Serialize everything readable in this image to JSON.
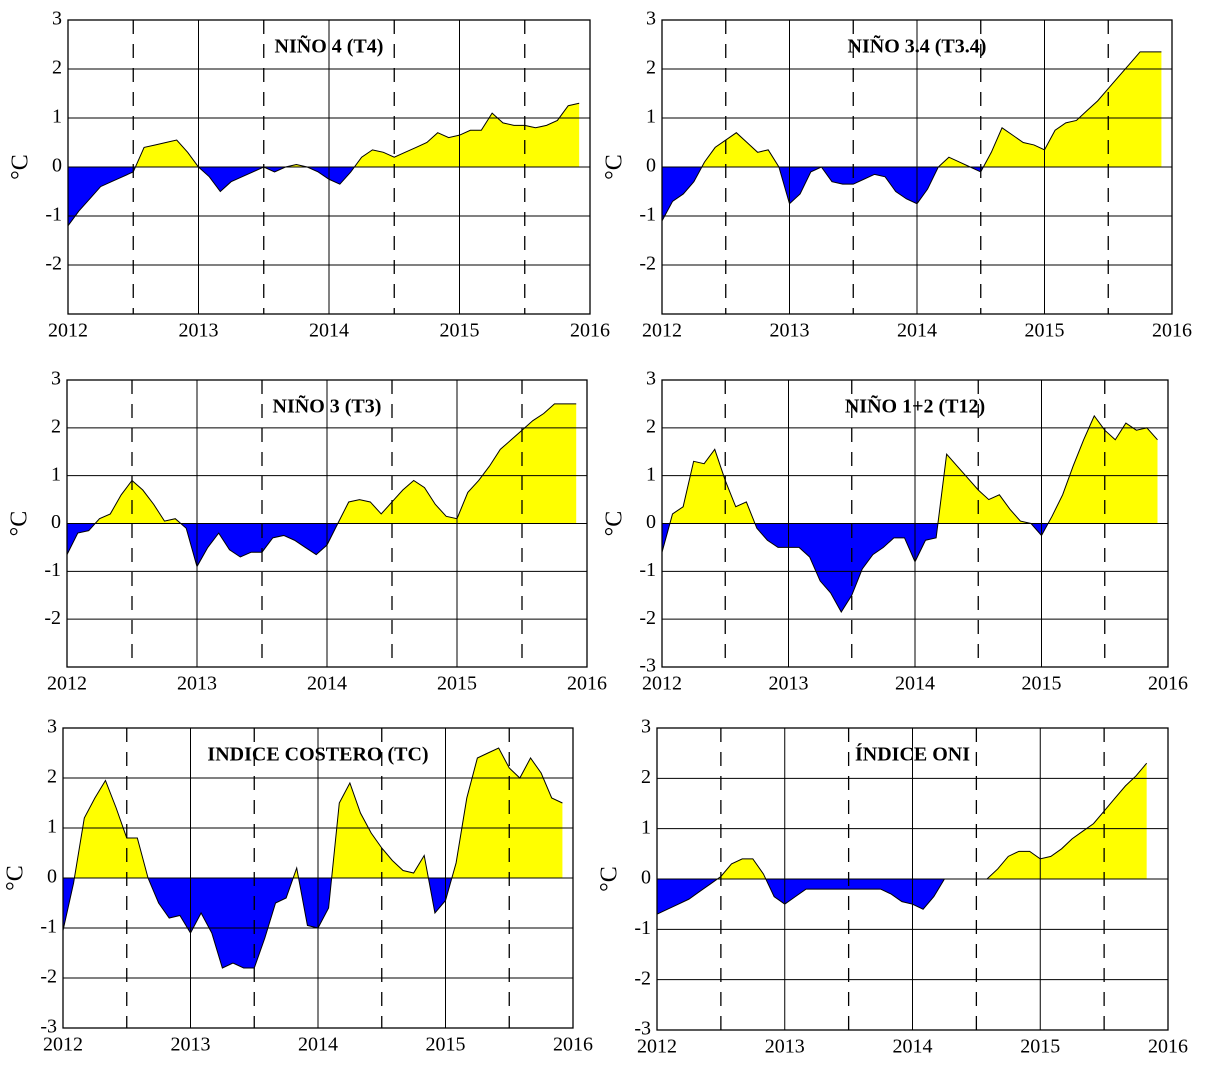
{
  "chart_data": [
    {
      "type": "area",
      "title": "NIÑO 4 (T4)",
      "ylabel": "°C",
      "pos_color": "#ffff00",
      "neg_color": "#0000ff",
      "line_color": "#000000",
      "x": [
        2012,
        2012.083,
        2012.167,
        2012.25,
        2012.333,
        2012.417,
        2012.5,
        2012.583,
        2012.667,
        2012.75,
        2012.833,
        2012.917,
        2013,
        2013.083,
        2013.167,
        2013.25,
        2013.333,
        2013.417,
        2013.5,
        2013.583,
        2013.667,
        2013.75,
        2013.833,
        2013.917,
        2014,
        2014.083,
        2014.167,
        2014.25,
        2014.333,
        2014.417,
        2014.5,
        2014.583,
        2014.667,
        2014.75,
        2014.833,
        2014.917,
        2015,
        2015.083,
        2015.167,
        2015.25,
        2015.333,
        2015.417,
        2015.5,
        2015.583,
        2015.667,
        2015.75,
        2015.833,
        2015.917
      ],
      "values": [
        -1.2,
        -0.9,
        -0.65,
        -0.4,
        -0.3,
        -0.2,
        -0.1,
        0.4,
        0.45,
        0.5,
        0.55,
        0.3,
        0.0,
        -0.2,
        -0.5,
        -0.3,
        -0.2,
        -0.1,
        0.0,
        -0.1,
        0.0,
        0.05,
        0.0,
        -0.1,
        -0.25,
        -0.35,
        -0.1,
        0.2,
        0.35,
        0.3,
        0.2,
        0.3,
        0.4,
        0.5,
        0.7,
        0.6,
        0.65,
        0.75,
        0.75,
        1.1,
        0.9,
        0.85,
        0.85,
        0.8,
        0.85,
        0.95,
        1.25,
        1.3
      ],
      "xlim": [
        2012,
        2016
      ],
      "xticks": [
        2012,
        2013,
        2014,
        2015,
        2016
      ],
      "x_dashed": [
        2012.5,
        2013.5,
        2014.5,
        2015.5
      ],
      "ylim": [
        -3,
        3
      ],
      "yticks": [
        -2,
        -1,
        0,
        1,
        2,
        3
      ],
      "grid": true
    },
    {
      "type": "area",
      "title": "NIÑO 3.4 (T3.4)",
      "ylabel": "°C",
      "pos_color": "#ffff00",
      "neg_color": "#0000ff",
      "line_color": "#000000",
      "x": [
        2012,
        2012.083,
        2012.167,
        2012.25,
        2012.333,
        2012.417,
        2012.5,
        2012.583,
        2012.667,
        2012.75,
        2012.833,
        2012.917,
        2013,
        2013.083,
        2013.167,
        2013.25,
        2013.333,
        2013.417,
        2013.5,
        2013.583,
        2013.667,
        2013.75,
        2013.833,
        2013.917,
        2014,
        2014.083,
        2014.167,
        2014.25,
        2014.333,
        2014.417,
        2014.5,
        2014.583,
        2014.667,
        2014.75,
        2014.833,
        2014.917,
        2015,
        2015.083,
        2015.167,
        2015.25,
        2015.333,
        2015.417,
        2015.5,
        2015.583,
        2015.667,
        2015.75,
        2015.833,
        2015.917
      ],
      "values": [
        -1.1,
        -0.7,
        -0.55,
        -0.3,
        0.1,
        0.4,
        0.55,
        0.7,
        0.5,
        0.3,
        0.35,
        0.0,
        -0.75,
        -0.55,
        -0.1,
        0.0,
        -0.3,
        -0.35,
        -0.35,
        -0.25,
        -0.15,
        -0.2,
        -0.5,
        -0.65,
        -0.75,
        -0.45,
        0.0,
        0.2,
        0.1,
        0.0,
        -0.1,
        0.3,
        0.8,
        0.65,
        0.5,
        0.45,
        0.35,
        0.75,
        0.9,
        0.95,
        1.15,
        1.35,
        1.6,
        1.85,
        2.1,
        2.35,
        2.35,
        2.35
      ],
      "xlim": [
        2012,
        2016
      ],
      "xticks": [
        2012,
        2013,
        2014,
        2015,
        2016
      ],
      "x_dashed": [
        2012.5,
        2013.5,
        2014.5,
        2015.5
      ],
      "ylim": [
        -3,
        3
      ],
      "yticks": [
        -2,
        -1,
        0,
        1,
        2,
        3
      ],
      "grid": true
    },
    {
      "type": "area",
      "title": "NIÑO 3 (T3)",
      "ylabel": "°C",
      "pos_color": "#ffff00",
      "neg_color": "#0000ff",
      "line_color": "#000000",
      "x": [
        2012,
        2012.083,
        2012.167,
        2012.25,
        2012.333,
        2012.417,
        2012.5,
        2012.583,
        2012.667,
        2012.75,
        2012.833,
        2012.917,
        2013,
        2013.083,
        2013.167,
        2013.25,
        2013.333,
        2013.417,
        2013.5,
        2013.583,
        2013.667,
        2013.75,
        2013.833,
        2013.917,
        2014,
        2014.083,
        2014.167,
        2014.25,
        2014.333,
        2014.417,
        2014.5,
        2014.583,
        2014.667,
        2014.75,
        2014.833,
        2014.917,
        2015,
        2015.083,
        2015.167,
        2015.25,
        2015.333,
        2015.417,
        2015.5,
        2015.583,
        2015.667,
        2015.75,
        2015.833,
        2015.917
      ],
      "values": [
        -0.65,
        -0.2,
        -0.15,
        0.1,
        0.2,
        0.6,
        0.9,
        0.7,
        0.4,
        0.05,
        0.1,
        -0.1,
        -0.9,
        -0.5,
        -0.2,
        -0.55,
        -0.7,
        -0.6,
        -0.6,
        -0.3,
        -0.25,
        -0.35,
        -0.5,
        -0.65,
        -0.45,
        0.0,
        0.45,
        0.5,
        0.45,
        0.2,
        0.45,
        0.7,
        0.9,
        0.75,
        0.4,
        0.15,
        0.1,
        0.65,
        0.9,
        1.2,
        1.55,
        1.75,
        1.95,
        2.15,
        2.3,
        2.5,
        2.5,
        2.5
      ],
      "xlim": [
        2012,
        2016
      ],
      "xticks": [
        2012,
        2013,
        2014,
        2015,
        2016
      ],
      "x_dashed": [
        2012.5,
        2013.5,
        2014.5,
        2015.5
      ],
      "ylim": [
        -3,
        3
      ],
      "yticks": [
        -2,
        -1,
        0,
        1,
        2,
        3
      ],
      "grid": true
    },
    {
      "type": "area",
      "title": "NIÑO 1+2 (T12)",
      "ylabel": "°C",
      "pos_color": "#ffff00",
      "neg_color": "#0000ff",
      "line_color": "#000000",
      "x": [
        2012,
        2012.083,
        2012.167,
        2012.25,
        2012.333,
        2012.417,
        2012.5,
        2012.583,
        2012.667,
        2012.75,
        2012.833,
        2012.917,
        2013,
        2013.083,
        2013.167,
        2013.25,
        2013.333,
        2013.417,
        2013.5,
        2013.583,
        2013.667,
        2013.75,
        2013.833,
        2013.917,
        2014,
        2014.083,
        2014.167,
        2014.25,
        2014.333,
        2014.417,
        2014.5,
        2014.583,
        2014.667,
        2014.75,
        2014.833,
        2014.917,
        2015,
        2015.083,
        2015.167,
        2015.25,
        2015.333,
        2015.417,
        2015.5,
        2015.583,
        2015.667,
        2015.75,
        2015.833,
        2015.917
      ],
      "values": [
        -0.6,
        0.2,
        0.35,
        1.3,
        1.25,
        1.55,
        0.9,
        0.35,
        0.45,
        -0.1,
        -0.35,
        -0.5,
        -0.5,
        -0.5,
        -0.7,
        -1.2,
        -1.45,
        -1.85,
        -1.5,
        -0.95,
        -0.65,
        -0.5,
        -0.3,
        -0.3,
        -0.8,
        -0.35,
        -0.3,
        1.45,
        1.2,
        0.95,
        0.7,
        0.5,
        0.6,
        0.3,
        0.05,
        0.0,
        -0.25,
        0.15,
        0.6,
        1.2,
        1.75,
        2.25,
        1.95,
        1.75,
        2.1,
        1.95,
        2.0,
        1.75
      ],
      "xlim": [
        2012,
        2016
      ],
      "xticks": [
        2012,
        2013,
        2014,
        2015,
        2016
      ],
      "x_dashed": [
        2012.5,
        2013.5,
        2014.5,
        2015.5
      ],
      "ylim": [
        -3,
        3
      ],
      "yticks": [
        -3,
        -2,
        -1,
        0,
        1,
        2,
        3
      ],
      "grid": true
    },
    {
      "type": "area",
      "title": "INDICE COSTERO (TC)",
      "ylabel": "°C",
      "pos_color": "#ffff00",
      "neg_color": "#0000ff",
      "line_color": "#000000",
      "x": [
        2012,
        2012.083,
        2012.167,
        2012.25,
        2012.333,
        2012.417,
        2012.5,
        2012.583,
        2012.667,
        2012.75,
        2012.833,
        2012.917,
        2013,
        2013.083,
        2013.167,
        2013.25,
        2013.333,
        2013.417,
        2013.5,
        2013.583,
        2013.667,
        2013.75,
        2013.833,
        2013.917,
        2014,
        2014.083,
        2014.167,
        2014.25,
        2014.333,
        2014.417,
        2014.5,
        2014.583,
        2014.667,
        2014.75,
        2014.833,
        2014.917,
        2015,
        2015.083,
        2015.167,
        2015.25,
        2015.333,
        2015.417,
        2015.5,
        2015.583,
        2015.667,
        2015.75,
        2015.833,
        2015.917
      ],
      "values": [
        -1.05,
        -0.1,
        1.2,
        1.6,
        1.95,
        1.4,
        0.8,
        0.8,
        0.0,
        -0.5,
        -0.8,
        -0.75,
        -1.1,
        -0.7,
        -1.1,
        -1.8,
        -1.7,
        -1.8,
        -1.8,
        -1.2,
        -0.5,
        -0.4,
        0.2,
        -0.95,
        -1.0,
        -0.6,
        1.5,
        1.9,
        1.3,
        0.9,
        0.6,
        0.35,
        0.15,
        0.1,
        0.45,
        -0.7,
        -0.45,
        0.3,
        1.6,
        2.4,
        2.5,
        2.6,
        2.2,
        2.0,
        2.4,
        2.1,
        1.6,
        1.5
      ],
      "xlim": [
        2012,
        2016
      ],
      "xticks": [
        2012,
        2013,
        2014,
        2015,
        2016
      ],
      "x_dashed": [
        2012.5,
        2013.5,
        2014.5,
        2015.5
      ],
      "ylim": [
        -3,
        3
      ],
      "yticks": [
        -3,
        -2,
        -1,
        0,
        1,
        2,
        3
      ],
      "grid": true
    },
    {
      "type": "area",
      "title": "ÍNDICE ONI",
      "ylabel": "°C",
      "pos_color": "#ffff00",
      "neg_color": "#0000ff",
      "line_color": "#000000",
      "x": [
        2012,
        2012.083,
        2012.167,
        2012.25,
        2012.333,
        2012.417,
        2012.5,
        2012.583,
        2012.667,
        2012.75,
        2012.833,
        2012.917,
        2013,
        2013.083,
        2013.167,
        2013.25,
        2013.333,
        2013.417,
        2013.5,
        2013.583,
        2013.667,
        2013.75,
        2013.833,
        2013.917,
        2014,
        2014.083,
        2014.167,
        2014.25,
        2014.333,
        2014.417,
        2014.5,
        2014.583,
        2014.667,
        2014.75,
        2014.833,
        2014.917,
        2015,
        2015.083,
        2015.167,
        2015.25,
        2015.333,
        2015.417,
        2015.5,
        2015.583,
        2015.667,
        2015.75,
        2015.833,
        2015.917
      ],
      "values": [
        -0.7,
        -0.6,
        -0.5,
        -0.4,
        -0.25,
        -0.1,
        0.05,
        0.3,
        0.4,
        0.4,
        0.1,
        -0.35,
        -0.5,
        -0.35,
        -0.2,
        -0.2,
        -0.2,
        -0.2,
        -0.2,
        -0.2,
        -0.2,
        -0.2,
        -0.3,
        -0.45,
        -0.5,
        -0.6,
        -0.35,
        0.0,
        null,
        null,
        null,
        0.0,
        0.2,
        0.45,
        0.55,
        0.55,
        0.4,
        0.45,
        0.6,
        0.8,
        0.95,
        1.1,
        1.35,
        1.6,
        1.85,
        2.05,
        2.3,
        null
      ],
      "xlim": [
        2012,
        2016
      ],
      "xticks": [
        2012,
        2013,
        2014,
        2015,
        2016
      ],
      "x_dashed": [
        2012.5,
        2013.5,
        2014.5,
        2015.5
      ],
      "ylim": [
        -3,
        3
      ],
      "yticks": [
        -3,
        -2,
        -1,
        0,
        1,
        2,
        3
      ],
      "grid": true
    }
  ]
}
